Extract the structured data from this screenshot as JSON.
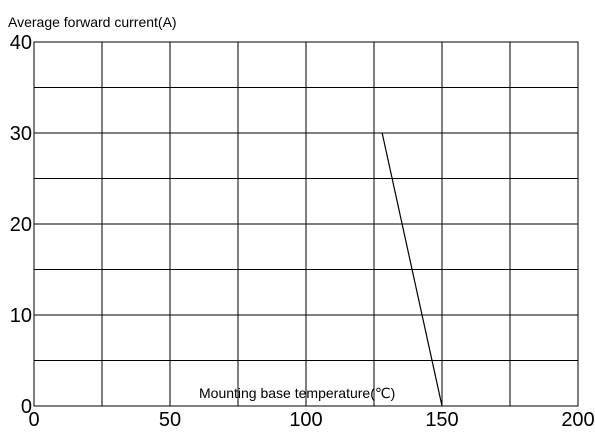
{
  "chart_data": {
    "type": "line",
    "title": "",
    "ylabel": "Average forward current(A)",
    "xlabel": "Mounting base temperature(℃)",
    "xlim": [
      0,
      200
    ],
    "ylim": [
      0,
      40
    ],
    "x_ticks": [
      0,
      50,
      100,
      150,
      200
    ],
    "y_ticks": [
      0,
      10,
      20,
      30,
      40
    ],
    "x_tick_labels": [
      "0",
      "50",
      "100",
      "150",
      "200"
    ],
    "y_tick_labels": [
      "0",
      "10",
      "20",
      "30",
      "40"
    ],
    "x_minor_step": 25,
    "y_minor_step": 5,
    "grid": true,
    "series": [
      {
        "x": [
          128,
          150
        ],
        "y": [
          30,
          0
        ]
      }
    ]
  }
}
